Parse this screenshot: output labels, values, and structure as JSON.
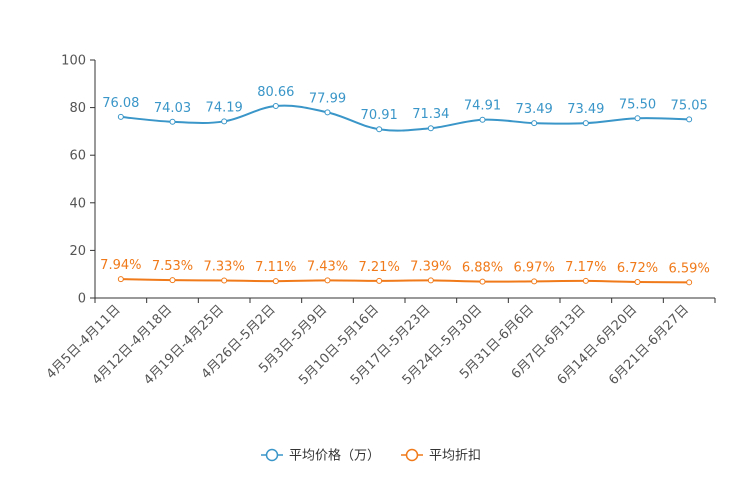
{
  "chart_data": {
    "type": "line",
    "title": "",
    "xlabel": "",
    "ylabel": "",
    "ylim": [
      0,
      100
    ],
    "yticks": [
      0,
      20,
      40,
      60,
      80,
      100
    ],
    "grid": false,
    "legend_position": "bottom",
    "categories": [
      "4月5日-4月11日",
      "4月12日-4月18日",
      "4月19日-4月25日",
      "4月26日-5月2日",
      "5月3日-5月9日",
      "5月10日-5月16日",
      "5月17日-5月23日",
      "5月24日-5月30日",
      "5月31日-6月6日",
      "6月7日-6月13日",
      "6月14日-6月20日",
      "6月21日-6月27日"
    ],
    "series": [
      {
        "name": "平均价格（万）",
        "color": "#3a96c8",
        "values": [
          76.08,
          74.03,
          74.19,
          80.66,
          77.99,
          70.91,
          71.34,
          74.91,
          73.49,
          73.49,
          75.5,
          75.05
        ],
        "labels": [
          "76.08",
          "74.03",
          "74.19",
          "80.66",
          "77.99",
          "70.91",
          "71.34",
          "74.91",
          "73.49",
          "73.49",
          "75.50",
          "75.05"
        ]
      },
      {
        "name": "平均折扣",
        "color": "#f07a1a",
        "values": [
          7.94,
          7.53,
          7.33,
          7.11,
          7.43,
          7.21,
          7.39,
          6.88,
          6.97,
          7.17,
          6.72,
          6.59
        ],
        "labels": [
          "7.94%",
          "7.53%",
          "7.33%",
          "7.11%",
          "7.43%",
          "7.21%",
          "7.39%",
          "6.88%",
          "6.97%",
          "7.17%",
          "6.72%",
          "6.59%"
        ]
      }
    ]
  }
}
